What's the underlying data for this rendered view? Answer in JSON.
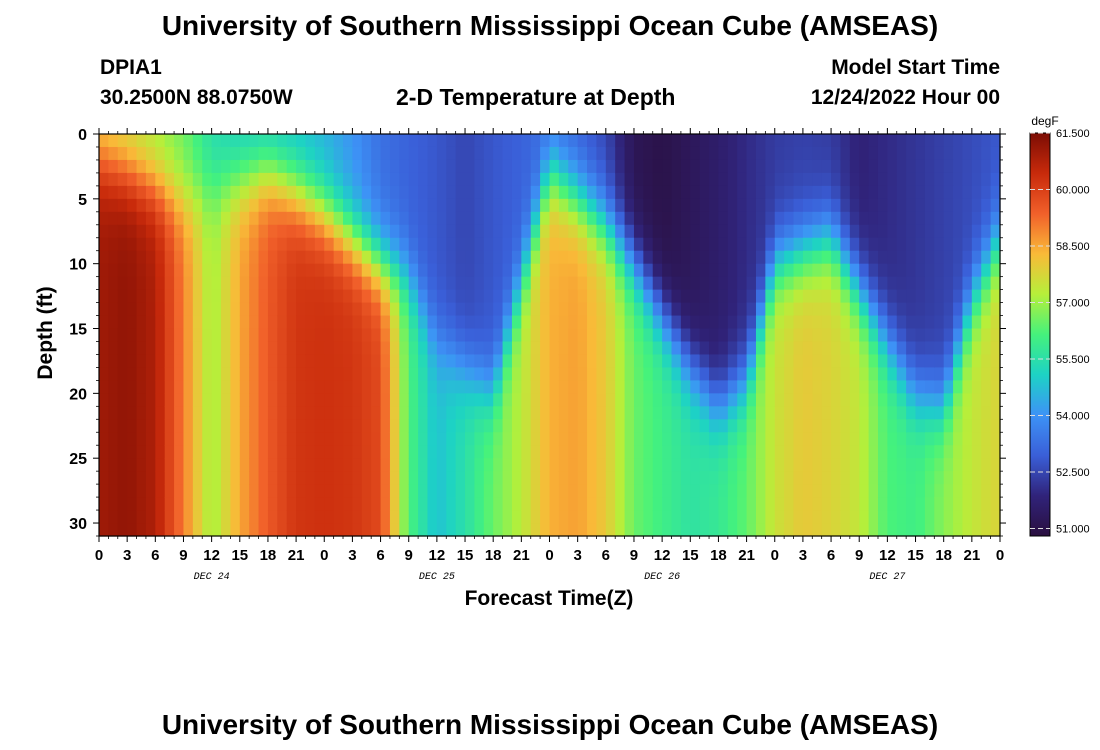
{
  "title": "University of Southern Mississippi Ocean Cube (AMSEAS)",
  "footer_title": "University of Southern Mississippi Ocean Cube (AMSEAS)",
  "header": {
    "station": "DPIA1",
    "coords": "30.2500N  88.0750W",
    "plot_title": "2-D Temperature at Depth",
    "model_start_label": "Model Start Time",
    "model_start_value": "12/24/2022 Hour 00"
  },
  "chart_data": {
    "type": "heatmap",
    "title": "2-D Temperature at Depth",
    "xlabel": "Forecast Time(Z)",
    "ylabel": "Depth (ft)",
    "x_range_hours": [
      0,
      96
    ],
    "x_tick_step_hours": 3,
    "x_tick_labels": [
      "0",
      "3",
      "6",
      "9",
      "12",
      "15",
      "18",
      "21",
      "0",
      "3",
      "6",
      "9",
      "12",
      "15",
      "18",
      "21",
      "0",
      "3",
      "6",
      "9",
      "12",
      "15",
      "18",
      "21",
      "0",
      "3",
      "6",
      "9",
      "12",
      "15",
      "18",
      "21",
      "0"
    ],
    "day_labels": [
      {
        "label": "DEC 24",
        "hour": 12
      },
      {
        "label": "DEC 25",
        "hour": 36
      },
      {
        "label": "DEC 26",
        "hour": 60
      },
      {
        "label": "DEC 27",
        "hour": 84
      }
    ],
    "y_range": [
      0,
      31
    ],
    "y_reversed": true,
    "y_ticks": [
      0,
      5,
      10,
      15,
      20,
      25,
      30
    ],
    "colorbar": {
      "unit": "degF",
      "min": 50.8,
      "max": 61.5,
      "ticks": [
        "51.000",
        "52.500",
        "54.000",
        "55.500",
        "57.000",
        "58.500",
        "60.000",
        "61.500"
      ],
      "colors": [
        "#2a0f3f",
        "#30237a",
        "#3a5fd8",
        "#3d93f6",
        "#1dd2c5",
        "#45f27c",
        "#b6ef3a",
        "#f9ba38",
        "#f1602a",
        "#c82a0b",
        "#7c0d04"
      ]
    },
    "temperature_profile": [
      {
        "hour": 0,
        "surface": 57.6,
        "deep": 61.0
      },
      {
        "hour": 3,
        "surface": 57.4,
        "deep": 61.2
      },
      {
        "hour": 6,
        "surface": 57.0,
        "deep": 60.8
      },
      {
        "hour": 9,
        "surface": 56.5,
        "deep": 59.0
      },
      {
        "hour": 12,
        "surface": 55.4,
        "deep": 57.0
      },
      {
        "hour": 15,
        "surface": 55.0,
        "deep": 58.5
      },
      {
        "hour": 18,
        "surface": 54.8,
        "deep": 59.5
      },
      {
        "hour": 21,
        "surface": 54.8,
        "deep": 60.2
      },
      {
        "hour": 24,
        "surface": 54.5,
        "deep": 60.3
      },
      {
        "hour": 27,
        "surface": 54.0,
        "deep": 60.2
      },
      {
        "hour": 30,
        "surface": 53.3,
        "deep": 59.8
      },
      {
        "hour": 33,
        "surface": 53.0,
        "deep": 56.2
      },
      {
        "hour": 36,
        "surface": 52.8,
        "deep": 54.8
      },
      {
        "hour": 39,
        "surface": 52.5,
        "deep": 55.5
      },
      {
        "hour": 42,
        "surface": 52.8,
        "deep": 56.5
      },
      {
        "hour": 45,
        "surface": 53.0,
        "deep": 57.3
      },
      {
        "hour": 48,
        "surface": 53.3,
        "deep": 58.4
      },
      {
        "hour": 51,
        "surface": 53.0,
        "deep": 58.6
      },
      {
        "hour": 54,
        "surface": 52.5,
        "deep": 58.0
      },
      {
        "hour": 57,
        "surface": 51.2,
        "deep": 56.5
      },
      {
        "hour": 60,
        "surface": 51.0,
        "deep": 56.0
      },
      {
        "hour": 63,
        "surface": 51.3,
        "deep": 55.6
      },
      {
        "hour": 66,
        "surface": 51.6,
        "deep": 55.8
      },
      {
        "hour": 69,
        "surface": 52.0,
        "deep": 56.4
      },
      {
        "hour": 72,
        "surface": 52.3,
        "deep": 57.5
      },
      {
        "hour": 75,
        "surface": 52.4,
        "deep": 58.0
      },
      {
        "hour": 78,
        "surface": 52.3,
        "deep": 57.8
      },
      {
        "hour": 81,
        "surface": 51.8,
        "deep": 57.4
      },
      {
        "hour": 84,
        "surface": 52.0,
        "deep": 56.2
      },
      {
        "hour": 87,
        "surface": 52.2,
        "deep": 56.0
      },
      {
        "hour": 90,
        "surface": 52.4,
        "deep": 56.8
      },
      {
        "hour": 93,
        "surface": 52.6,
        "deep": 57.4
      },
      {
        "hour": 96,
        "surface": 52.8,
        "deep": 57.8
      }
    ],
    "thermocline_depth_ft": [
      {
        "hour": 0,
        "depth": 2
      },
      {
        "hour": 9,
        "depth": 5
      },
      {
        "hour": 18,
        "depth": 3
      },
      {
        "hour": 24,
        "depth": 6
      },
      {
        "hour": 27,
        "depth": 8
      },
      {
        "hour": 30,
        "depth": 10
      },
      {
        "hour": 33,
        "depth": 11
      },
      {
        "hour": 36,
        "depth": 16
      },
      {
        "hour": 42,
        "depth": 20
      },
      {
        "hour": 48,
        "depth": 3
      },
      {
        "hour": 54,
        "depth": 7
      },
      {
        "hour": 57,
        "depth": 10
      },
      {
        "hour": 63,
        "depth": 18
      },
      {
        "hour": 66,
        "depth": 21
      },
      {
        "hour": 69,
        "depth": 19
      },
      {
        "hour": 72,
        "depth": 10
      },
      {
        "hour": 78,
        "depth": 8
      },
      {
        "hour": 84,
        "depth": 16
      },
      {
        "hour": 87,
        "depth": 20
      },
      {
        "hour": 90,
        "depth": 21
      },
      {
        "hour": 93,
        "depth": 13
      },
      {
        "hour": 96,
        "depth": 8
      }
    ]
  }
}
